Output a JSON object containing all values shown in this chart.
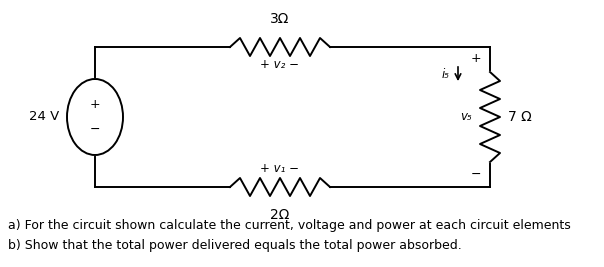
{
  "bg_color": "#ffffff",
  "fig_width": 6.04,
  "fig_height": 2.67,
  "dpi": 100,
  "text_a": "a) For the circuit shown calculate the current, voltage and power at each circuit elements",
  "text_b": "b) Show that the total power delivered equals the total power absorbed.",
  "font_size_main": 9.0,
  "source_voltage": "24 V",
  "top_res_label": "3Ω",
  "top_v_label": "+ v₂ −",
  "bot_res_label": "2Ω",
  "bot_v_label": "+ v₁ −",
  "right_res_label": "7 Ω",
  "right_v_label": "v₅",
  "right_i_label": "i₅"
}
